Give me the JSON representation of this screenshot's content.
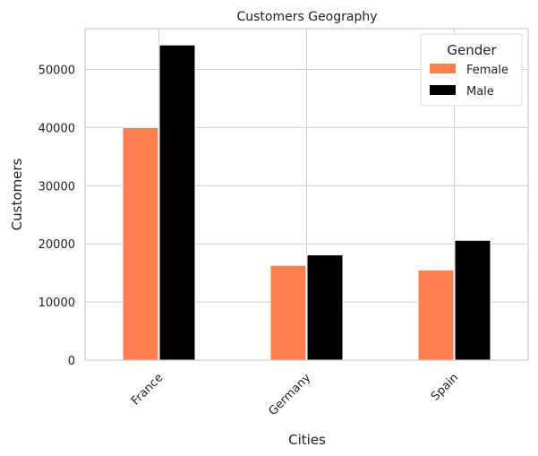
{
  "chart_data": {
    "type": "bar",
    "title": "Customers Geography",
    "xlabel": "Cities",
    "ylabel": "Customers",
    "categories": [
      "France",
      "Germany",
      "Spain"
    ],
    "series": [
      {
        "name": "Female",
        "values": [
          40000,
          16300,
          15500
        ],
        "color": "#ff7f50"
      },
      {
        "name": "Male",
        "values": [
          54200,
          18100,
          20600
        ],
        "color": "#000000"
      }
    ],
    "ylim": [
      0,
      57000
    ],
    "yticks": [
      0,
      10000,
      20000,
      30000,
      40000,
      50000
    ],
    "legend": {
      "title": "Gender",
      "placement": "top-right"
    },
    "grid": true
  }
}
